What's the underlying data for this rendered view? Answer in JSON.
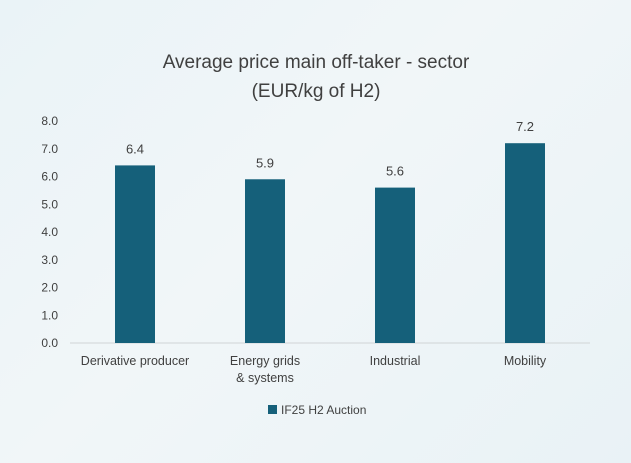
{
  "chart_data": {
    "type": "bar",
    "title": "Average price main off-taker - sector",
    "subtitle": "(EUR/kg of H2)",
    "categories": [
      "Derivative producer",
      "Energy grids & systems",
      "Industrial",
      "Mobility"
    ],
    "series": [
      {
        "name": "IF25 H2 Auction",
        "values": [
          6.4,
          5.9,
          5.6,
          7.2
        ]
      }
    ],
    "data_labels": [
      "6.4",
      "5.9",
      "5.6",
      "7.2"
    ],
    "ylim": [
      0,
      8
    ],
    "ytick_labels": [
      "0.0",
      "1.0",
      "2.0",
      "3.0",
      "4.0",
      "5.0",
      "6.0",
      "7.0",
      "8.0"
    ],
    "grid": false,
    "legend_position": "bottom",
    "bar_color": "#15607a"
  }
}
